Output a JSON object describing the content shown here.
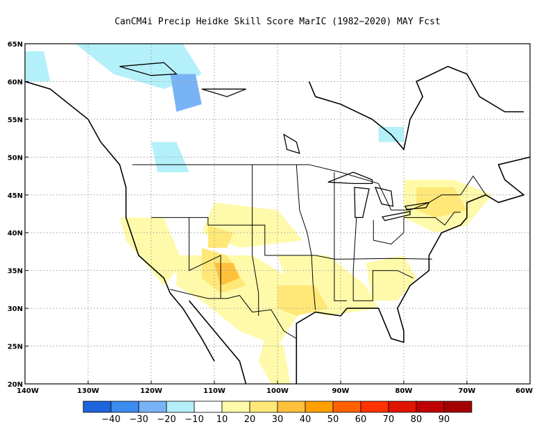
{
  "title": "CanCM4i Precip Heidke Skill Score MarIC (1982−2020) MAY Fcst",
  "map": {
    "lon_range": [
      -140,
      -60
    ],
    "lat_range": [
      20,
      65
    ],
    "lon_ticks": [
      {
        "value": -140,
        "label": "140W"
      },
      {
        "value": -130,
        "label": "130W"
      },
      {
        "value": -120,
        "label": "120W"
      },
      {
        "value": -110,
        "label": "110W"
      },
      {
        "value": -100,
        "label": "100W"
      },
      {
        "value": -90,
        "label": "90W"
      },
      {
        "value": -80,
        "label": "80W"
      },
      {
        "value": -70,
        "label": "70W"
      },
      {
        "value": -60,
        "label": "60W"
      }
    ],
    "lat_ticks": [
      {
        "value": 20,
        "label": "20N"
      },
      {
        "value": 25,
        "label": "25N"
      },
      {
        "value": 30,
        "label": "30N"
      },
      {
        "value": 35,
        "label": "35N"
      },
      {
        "value": 40,
        "label": "40N"
      },
      {
        "value": 45,
        "label": "45N"
      },
      {
        "value": 50,
        "label": "50N"
      },
      {
        "value": 55,
        "label": "55N"
      },
      {
        "value": 60,
        "label": "60N"
      },
      {
        "value": 65,
        "label": "65N"
      }
    ],
    "gridlines": "dotted"
  },
  "colorbar": {
    "colors": [
      "#1e64dc",
      "#3c8cf0",
      "#78b4f5",
      "#b4f0fa",
      "#ffffff",
      "#fffaaa",
      "#ffe878",
      "#ffc03c",
      "#ffa000",
      "#ff6000",
      "#ff3200",
      "#e11400",
      "#c00000",
      "#a50000"
    ],
    "labels": [
      "−40",
      "−30",
      "−20",
      "−10",
      "10",
      "20",
      "30",
      "40",
      "50",
      "60",
      "70",
      "80",
      "90"
    ]
  },
  "skill_regions": [
    {
      "level": "10-20",
      "color": "#fffaaa",
      "lonlat": [
        [
          -125,
          42
        ],
        [
          -118,
          42
        ],
        [
          -115,
          36
        ],
        [
          -118,
          33
        ],
        [
          -124,
          39
        ]
      ]
    },
    {
      "level": "10-20",
      "color": "#fffaaa",
      "lonlat": [
        [
          -116,
          37
        ],
        [
          -104,
          37
        ],
        [
          -98,
          34
        ],
        [
          -96,
          30
        ],
        [
          -100,
          25
        ],
        [
          -106,
          27
        ],
        [
          -112,
          31
        ],
        [
          -116,
          33
        ]
      ]
    },
    {
      "level": "10-20",
      "color": "#fffaaa",
      "lonlat": [
        [
          -100,
          37
        ],
        [
          -92,
          37
        ],
        [
          -86,
          33
        ],
        [
          -84,
          30
        ],
        [
          -92,
          29
        ],
        [
          -97,
          30
        ]
      ]
    },
    {
      "level": "10-20",
      "color": "#fffaaa",
      "lonlat": [
        [
          -86,
          36
        ],
        [
          -80,
          37
        ],
        [
          -78,
          34
        ],
        [
          -81,
          31
        ],
        [
          -85,
          31
        ]
      ]
    },
    {
      "level": "10-20",
      "color": "#fffaaa",
      "lonlat": [
        [
          -80,
          47
        ],
        [
          -72,
          47
        ],
        [
          -66,
          45
        ],
        [
          -70,
          41
        ],
        [
          -75,
          40
        ],
        [
          -80,
          42
        ]
      ]
    },
    {
      "level": "10-20",
      "color": "#fffaaa",
      "lonlat": [
        [
          -110,
          44
        ],
        [
          -100,
          43
        ],
        [
          -96,
          39
        ],
        [
          -106,
          38
        ],
        [
          -112,
          40
        ]
      ]
    },
    {
      "level": "10-20",
      "color": "#fffaaa",
      "lonlat": [
        [
          -102,
          26
        ],
        [
          -99,
          25
        ],
        [
          -98,
          20
        ],
        [
          -101,
          20
        ],
        [
          -103,
          23
        ]
      ]
    },
    {
      "level": "20-30",
      "color": "#ffe878",
      "lonlat": [
        [
          -112,
          38
        ],
        [
          -108,
          37
        ],
        [
          -105,
          33
        ],
        [
          -109,
          32
        ],
        [
          -112,
          34
        ]
      ]
    },
    {
      "level": "20-30",
      "color": "#ffe878",
      "lonlat": [
        [
          -100,
          33
        ],
        [
          -94,
          33
        ],
        [
          -92,
          30
        ],
        [
          -97,
          29
        ],
        [
          -100,
          30
        ]
      ]
    },
    {
      "level": "20-30",
      "color": "#ffe878",
      "lonlat": [
        [
          -78,
          46
        ],
        [
          -72,
          46
        ],
        [
          -70,
          43
        ],
        [
          -75,
          42
        ],
        [
          -78,
          43
        ]
      ]
    },
    {
      "level": "20-30",
      "color": "#ffe878",
      "lonlat": [
        [
          -111,
          41
        ],
        [
          -107,
          40
        ],
        [
          -108,
          38
        ],
        [
          -111,
          38
        ]
      ]
    },
    {
      "level": "30-40",
      "color": "#ffc03c",
      "lonlat": [
        [
          -110,
          36
        ],
        [
          -107,
          36
        ],
        [
          -106,
          34
        ],
        [
          -109,
          33
        ]
      ]
    },
    {
      "level": "-20--10",
      "color": "#b4f0fa",
      "lonlat": [
        [
          -132,
          65
        ],
        [
          -115,
          65
        ],
        [
          -112,
          61
        ],
        [
          -118,
          59
        ],
        [
          -126,
          61
        ]
      ]
    },
    {
      "level": "-20--10",
      "color": "#b4f0fa",
      "lonlat": [
        [
          -120,
          52
        ],
        [
          -116,
          52
        ],
        [
          -114,
          48
        ],
        [
          -119,
          48
        ]
      ]
    },
    {
      "level": "-20--10",
      "color": "#b4f0fa",
      "lonlat": [
        [
          -140,
          64
        ],
        [
          -137,
          64
        ],
        [
          -136,
          60
        ],
        [
          -140,
          60
        ]
      ]
    },
    {
      "level": "-30--20",
      "color": "#78b4f5",
      "lonlat": [
        [
          -117,
          61
        ],
        [
          -113,
          61
        ],
        [
          -112,
          57
        ],
        [
          -116,
          56
        ]
      ]
    },
    {
      "level": "-20--10",
      "color": "#b4f0fa",
      "lonlat": [
        [
          -84,
          54
        ],
        [
          -80,
          54
        ],
        [
          -80,
          52
        ],
        [
          -84,
          52
        ]
      ]
    }
  ],
  "coastlines": [
    [
      [
        -140,
        60
      ],
      [
        -136,
        59
      ],
      [
        -133,
        57
      ],
      [
        -130,
        55
      ],
      [
        -128,
        52
      ],
      [
        -125,
        49
      ],
      [
        -124,
        46
      ],
      [
        -124,
        42
      ],
      [
        -122,
        37
      ],
      [
        -118,
        34
      ],
      [
        -117,
        32
      ],
      [
        -115,
        30
      ],
      [
        -112,
        26
      ],
      [
        -110,
        23
      ]
    ],
    [
      [
        -114,
        31
      ],
      [
        -112,
        29
      ],
      [
        -110,
        27
      ],
      [
        -108,
        25
      ],
      [
        -106,
        23
      ],
      [
        -105,
        20
      ]
    ],
    [
      [
        -97,
        20
      ],
      [
        -97,
        25
      ],
      [
        -97,
        28
      ],
      [
        -94,
        29.5
      ],
      [
        -90,
        29
      ],
      [
        -89,
        30
      ],
      [
        -84,
        30
      ],
      [
        -83,
        28
      ],
      [
        -82,
        26
      ],
      [
        -80,
        25.5
      ],
      [
        -80,
        27
      ],
      [
        -81,
        30
      ],
      [
        -79,
        33
      ],
      [
        -76,
        35
      ],
      [
        -76,
        37
      ],
      [
        -74,
        40
      ],
      [
        -71,
        41
      ],
      [
        -70,
        42
      ],
      [
        -70,
        44
      ],
      [
        -67,
        45
      ],
      [
        -65,
        44
      ],
      [
        -61,
        45
      ],
      [
        -64,
        47
      ],
      [
        -65,
        49
      ],
      [
        -60,
        50
      ]
    ],
    [
      [
        -95,
        60
      ],
      [
        -94,
        58
      ],
      [
        -90,
        57
      ],
      [
        -85,
        55
      ],
      [
        -82,
        53
      ],
      [
        -80,
        51
      ],
      [
        -79,
        55
      ],
      [
        -77,
        58
      ],
      [
        -78,
        60
      ],
      [
        -73,
        62
      ],
      [
        -70,
        61
      ],
      [
        -68,
        58
      ],
      [
        -64,
        56
      ],
      [
        -61,
        56
      ]
    ]
  ],
  "borders": [
    [
      [
        -123,
        49
      ],
      [
        -95,
        49
      ],
      [
        -90,
        48
      ],
      [
        -84,
        46.5
      ],
      [
        -82,
        43
      ],
      [
        -79,
        43
      ],
      [
        -76,
        44
      ],
      [
        -74,
        45
      ],
      [
        -71,
        45
      ],
      [
        -69,
        47.5
      ],
      [
        -67,
        45
      ]
    ],
    [
      [
        -117,
        32.5
      ],
      [
        -111,
        31.3
      ],
      [
        -108,
        31.3
      ],
      [
        -106,
        31.7
      ],
      [
        -104,
        29.5
      ],
      [
        -101,
        29.8
      ],
      [
        -99,
        27
      ],
      [
        -97,
        26
      ]
    ],
    [
      [
        -120,
        42
      ],
      [
        -111,
        42
      ],
      [
        -111,
        41
      ],
      [
        -102,
        41
      ],
      [
        -102,
        37
      ],
      [
        -94,
        37
      ],
      [
        -91,
        36.5
      ],
      [
        -89.5,
        36.5
      ],
      [
        -82,
        36.6
      ],
      [
        -75.5,
        36.5
      ]
    ],
    [
      [
        -114,
        42
      ],
      [
        -114,
        35
      ],
      [
        -109,
        37
      ],
      [
        -109,
        31.3
      ]
    ],
    [
      [
        -104,
        49
      ],
      [
        -104,
        37
      ],
      [
        -103,
        32
      ],
      [
        -103,
        29
      ]
    ],
    [
      [
        -97,
        49
      ],
      [
        -96.5,
        43
      ],
      [
        -95.3,
        40
      ],
      [
        -94.6,
        37
      ],
      [
        -94.4,
        33.5
      ],
      [
        -94,
        29.8
      ]
    ],
    [
      [
        -91,
        48
      ],
      [
        -91,
        43
      ],
      [
        -91,
        36
      ],
      [
        -91,
        31
      ],
      [
        -89,
        31
      ]
    ],
    [
      [
        -87.5,
        42
      ],
      [
        -88,
        35
      ],
      [
        -88,
        31
      ],
      [
        -84.9,
        31
      ],
      [
        -84.9,
        35
      ],
      [
        -81,
        35
      ],
      [
        -78.5,
        34
      ]
    ],
    [
      [
        -84.8,
        41.7
      ],
      [
        -84.8,
        39
      ],
      [
        -82,
        38.5
      ],
      [
        -80,
        40
      ],
      [
        -80,
        42
      ],
      [
        -75,
        42
      ],
      [
        -73.5,
        41
      ],
      [
        -72,
        42.7
      ],
      [
        -71,
        42.7
      ]
    ]
  ],
  "lakes": [
    [
      [
        -92,
        46.7
      ],
      [
        -88,
        48
      ],
      [
        -85,
        47
      ],
      [
        -85,
        46.5
      ],
      [
        -88,
        46.5
      ]
    ],
    [
      [
        -87.8,
        46
      ],
      [
        -85.5,
        45.8
      ],
      [
        -86.5,
        42
      ],
      [
        -87.7,
        42
      ]
    ],
    [
      [
        -84.5,
        46
      ],
      [
        -82,
        45.5
      ],
      [
        -81.7,
        43.5
      ],
      [
        -83.5,
        43.8
      ]
    ],
    [
      [
        -83.4,
        42.1
      ],
      [
        -79,
        42.8
      ],
      [
        -79,
        42.4
      ],
      [
        -83,
        41.6
      ]
    ],
    [
      [
        -79.8,
        43.5
      ],
      [
        -76,
        44
      ],
      [
        -76.5,
        43.3
      ],
      [
        -79.5,
        43.1
      ]
    ],
    [
      [
        -99,
        53
      ],
      [
        -97,
        52
      ],
      [
        -96.5,
        50.5
      ],
      [
        -98.5,
        51
      ]
    ],
    [
      [
        -125,
        62
      ],
      [
        -118,
        62.5
      ],
      [
        -116,
        61
      ],
      [
        -120,
        60.8
      ]
    ],
    [
      [
        -112,
        59
      ],
      [
        -105,
        59
      ],
      [
        -108,
        58
      ]
    ]
  ]
}
